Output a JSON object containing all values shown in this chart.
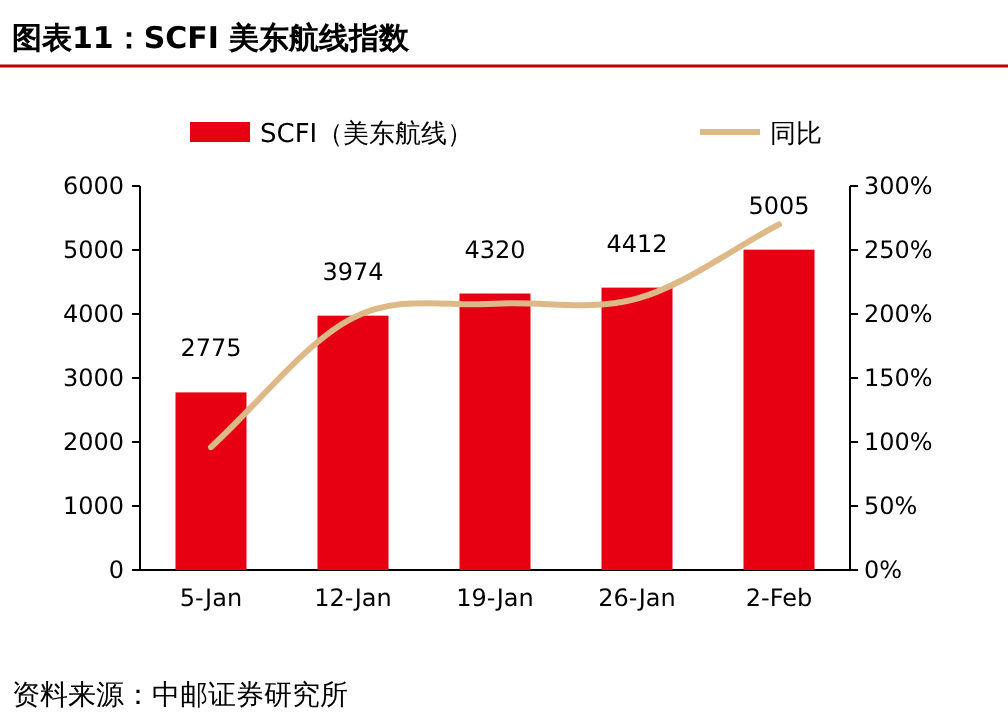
{
  "chart_data": {
    "type": "bar",
    "title": "图表11：SCFI 美东航线指数",
    "categories": [
      "5-Jan",
      "12-Jan",
      "19-Jan",
      "26-Jan",
      "2-Feb"
    ],
    "series": [
      {
        "name": "SCFI（美东航线）",
        "color": "#e60012",
        "values": [
          2775,
          3974,
          4320,
          4412,
          5005
        ],
        "value_labels": [
          "2775",
          "3974",
          "4320",
          "4412",
          "5005"
        ]
      },
      {
        "name": "同比",
        "type": "line",
        "axis": "y2",
        "color": "#deb887",
        "values": [
          96,
          197,
          208,
          212,
          270
        ]
      }
    ],
    "ylim": [
      0,
      6000
    ],
    "yticks": [
      0,
      1000,
      2000,
      3000,
      4000,
      5000,
      6000
    ],
    "y2lim": [
      0,
      300
    ],
    "y2ticks": [
      {
        "value": 0,
        "label": "0%"
      },
      {
        "value": 50,
        "label": "50%"
      },
      {
        "value": 100,
        "label": "100%"
      },
      {
        "value": 150,
        "label": "150%"
      },
      {
        "value": 200,
        "label": "200%"
      },
      {
        "value": 250,
        "label": "250%"
      },
      {
        "value": 300,
        "label": "300%"
      }
    ],
    "legend": "top",
    "annotations": [
      "资料来源：中邮证券研究所"
    ]
  }
}
